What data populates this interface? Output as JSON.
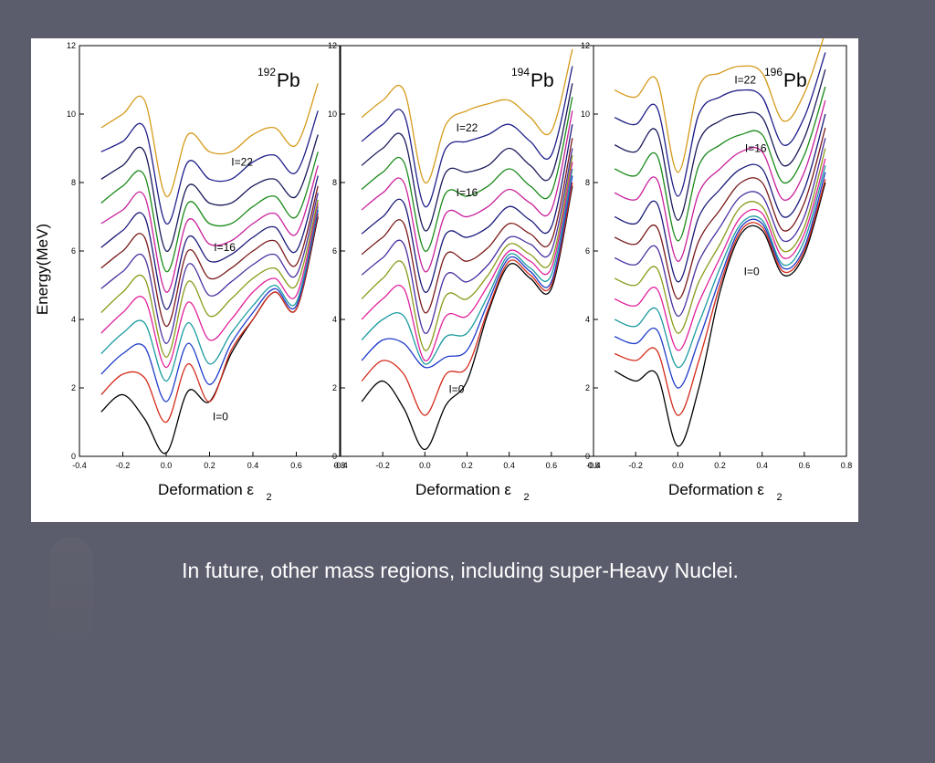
{
  "caption": "In future, other mass regions, including super-Heavy Nuclei.",
  "chart_data": [
    {
      "type": "line",
      "nucleus_mass": "192",
      "nucleus_symbol": "Pb",
      "xlabel": "Deformation ε",
      "xlabel_sub": "2",
      "ylabel": "Energy(MeV)",
      "xlim": [
        -0.4,
        0.8
      ],
      "ylim": [
        0,
        12
      ],
      "xticks": [
        "-0.4",
        "-0.2",
        "0.0",
        "0.2",
        "0.4",
        "0.6",
        "0.8"
      ],
      "yticks": [
        "0",
        "2",
        "4",
        "6",
        "8",
        "10",
        "12"
      ],
      "x": [
        -0.3,
        -0.2,
        -0.1,
        0.0,
        0.1,
        0.2,
        0.3,
        0.4,
        0.5,
        0.6,
        0.7
      ],
      "series": [
        {
          "values": [
            1.3,
            1.8,
            1.1,
            0.1,
            1.9,
            1.6,
            3.0,
            4.0,
            4.8,
            4.3,
            7.0
          ]
        },
        {
          "values": [
            1.8,
            2.4,
            2.3,
            1.0,
            2.7,
            1.6,
            3.1,
            4.0,
            4.8,
            4.3,
            7.1
          ]
        },
        {
          "values": [
            2.4,
            3.0,
            3.2,
            1.6,
            3.3,
            2.1,
            3.3,
            4.2,
            4.9,
            4.4,
            7.2
          ]
        },
        {
          "values": [
            3.0,
            3.6,
            3.9,
            2.2,
            3.9,
            2.7,
            3.6,
            4.4,
            5.0,
            4.5,
            7.3
          ]
        },
        {
          "values": [
            3.6,
            4.2,
            4.6,
            2.6,
            4.5,
            3.4,
            4.0,
            4.8,
            5.2,
            4.7,
            7.4
          ]
        },
        {
          "values": [
            4.2,
            4.8,
            5.2,
            2.9,
            5.1,
            4.1,
            4.6,
            5.2,
            5.5,
            5.0,
            7.5
          ]
        },
        {
          "values": [
            4.9,
            5.4,
            5.8,
            3.3,
            5.6,
            4.7,
            5.1,
            5.6,
            5.9,
            5.3,
            7.7
          ]
        },
        {
          "values": [
            5.5,
            6.0,
            6.4,
            3.8,
            6.0,
            5.2,
            5.5,
            6.0,
            6.3,
            5.6,
            7.9
          ]
        },
        {
          "values": [
            6.1,
            6.6,
            7.0,
            4.3,
            6.4,
            5.7,
            5.9,
            6.4,
            6.7,
            6.0,
            8.2
          ]
        },
        {
          "values": [
            6.8,
            7.2,
            7.6,
            4.8,
            6.9,
            6.2,
            6.3,
            6.8,
            7.1,
            6.5,
            8.5
          ]
        },
        {
          "values": [
            7.4,
            7.9,
            8.2,
            5.4,
            7.4,
            6.8,
            6.8,
            7.3,
            7.6,
            7.0,
            8.9
          ]
        },
        {
          "values": [
            8.1,
            8.5,
            8.9,
            6.0,
            7.9,
            7.4,
            7.4,
            7.9,
            8.1,
            7.6,
            9.4
          ]
        },
        {
          "values": [
            8.9,
            9.2,
            9.6,
            6.8,
            8.6,
            8.1,
            8.1,
            8.6,
            8.8,
            8.3,
            10.1
          ]
        },
        {
          "values": [
            9.6,
            10.0,
            10.4,
            7.6,
            9.4,
            8.9,
            8.9,
            9.4,
            9.6,
            9.1,
            10.9
          ]
        }
      ],
      "labels": [
        {
          "text": "I=0",
          "x": 0.25,
          "y": 1.05
        },
        {
          "text": "I=16",
          "x": 0.27,
          "y": 6.0
        },
        {
          "text": "I=22",
          "x": 0.35,
          "y": 8.5
        }
      ]
    },
    {
      "type": "line",
      "nucleus_mass": "194",
      "nucleus_symbol": "Pb",
      "xlabel": "Deformation ε",
      "xlabel_sub": "2",
      "xlim": [
        -0.4,
        0.8
      ],
      "ylim": [
        0,
        12
      ],
      "xticks": [
        "-0.4",
        "-0.2",
        "0.0",
        "0.2",
        "0.4",
        "0.6",
        "0.8"
      ],
      "yticks": [
        "0",
        "2",
        "4",
        "6",
        "8",
        "10",
        "12"
      ],
      "x": [
        -0.3,
        -0.2,
        -0.1,
        0.0,
        0.1,
        0.2,
        0.3,
        0.4,
        0.5,
        0.6,
        0.7
      ],
      "series": [
        {
          "values": [
            1.6,
            2.2,
            1.4,
            0.2,
            1.5,
            2.2,
            4.2,
            5.6,
            5.2,
            4.9,
            7.9
          ]
        },
        {
          "values": [
            2.2,
            2.8,
            2.4,
            1.2,
            2.4,
            2.6,
            4.3,
            5.7,
            5.3,
            5.0,
            8.0
          ]
        },
        {
          "values": [
            2.8,
            3.4,
            3.3,
            2.6,
            2.9,
            3.1,
            4.5,
            5.8,
            5.4,
            5.1,
            8.2
          ]
        },
        {
          "values": [
            3.4,
            4.0,
            4.1,
            2.7,
            3.5,
            3.6,
            4.7,
            5.9,
            5.5,
            5.3,
            8.4
          ]
        },
        {
          "values": [
            4.0,
            4.6,
            4.9,
            2.8,
            4.1,
            4.1,
            5.0,
            6.0,
            5.7,
            5.5,
            8.6
          ]
        },
        {
          "values": [
            4.6,
            5.2,
            5.6,
            3.1,
            4.7,
            4.6,
            5.3,
            6.2,
            5.9,
            5.7,
            8.8
          ]
        },
        {
          "values": [
            5.3,
            5.8,
            6.2,
            3.6,
            5.3,
            5.1,
            5.6,
            6.4,
            6.2,
            6.0,
            9.0
          ]
        },
        {
          "values": [
            5.9,
            6.4,
            6.8,
            4.2,
            5.9,
            5.7,
            6.1,
            6.8,
            6.5,
            6.3,
            9.3
          ]
        },
        {
          "values": [
            6.5,
            7.0,
            7.4,
            4.8,
            6.5,
            6.4,
            6.7,
            7.3,
            6.9,
            6.7,
            9.7
          ]
        },
        {
          "values": [
            7.2,
            7.7,
            8.0,
            5.4,
            7.1,
            7.0,
            7.3,
            7.8,
            7.4,
            7.2,
            10.1
          ]
        },
        {
          "values": [
            7.8,
            8.3,
            8.6,
            6.0,
            7.7,
            7.6,
            7.9,
            8.4,
            7.9,
            7.7,
            10.5
          ]
        },
        {
          "values": [
            8.5,
            9.0,
            9.3,
            6.6,
            8.3,
            8.3,
            8.5,
            9.0,
            8.5,
            8.2,
            10.9
          ]
        },
        {
          "values": [
            9.2,
            9.7,
            10.0,
            7.3,
            9.0,
            9.2,
            9.4,
            9.7,
            9.2,
            8.8,
            11.4
          ]
        },
        {
          "values": [
            9.9,
            10.4,
            10.7,
            8.0,
            9.7,
            10.1,
            10.3,
            10.4,
            9.9,
            9.5,
            11.9
          ]
        }
      ],
      "labels": [
        {
          "text": "I=0",
          "x": 0.15,
          "y": 1.85
        },
        {
          "text": "I=16",
          "x": 0.2,
          "y": 7.6
        },
        {
          "text": "I=22",
          "x": 0.2,
          "y": 9.5
        }
      ]
    },
    {
      "type": "line",
      "nucleus_mass": "196",
      "nucleus_symbol": "Pb",
      "xlabel": "Deformation ε",
      "xlabel_sub": "2",
      "xlim": [
        -0.4,
        0.8
      ],
      "ylim": [
        0,
        12
      ],
      "xticks": [
        "-0.4",
        "-0.2",
        "0.0",
        "0.2",
        "0.4",
        "0.6",
        "0.8"
      ],
      "yticks": [
        "0",
        "2",
        "4",
        "6",
        "8",
        "10",
        "12"
      ],
      "x": [
        -0.3,
        -0.2,
        -0.1,
        0.0,
        0.1,
        0.2,
        0.3,
        0.4,
        0.5,
        0.6,
        0.7
      ],
      "series": [
        {
          "values": [
            2.5,
            2.2,
            2.4,
            0.3,
            2.0,
            4.8,
            6.5,
            6.6,
            5.3,
            5.9,
            8.0
          ]
        },
        {
          "values": [
            3.0,
            2.8,
            3.1,
            1.2,
            2.8,
            5.0,
            6.6,
            6.7,
            5.4,
            6.0,
            8.1
          ]
        },
        {
          "values": [
            3.5,
            3.3,
            3.7,
            2.0,
            3.4,
            5.2,
            6.7,
            6.8,
            5.5,
            6.1,
            8.3
          ]
        },
        {
          "values": [
            4.0,
            3.8,
            4.3,
            2.6,
            3.9,
            5.5,
            6.8,
            6.9,
            5.6,
            6.3,
            8.5
          ]
        },
        {
          "values": [
            4.6,
            4.4,
            4.9,
            3.1,
            4.5,
            5.8,
            7.0,
            7.1,
            5.8,
            6.5,
            8.7
          ]
        },
        {
          "values": [
            5.2,
            5.0,
            5.5,
            3.6,
            5.1,
            6.2,
            7.3,
            7.3,
            6.0,
            6.7,
            9.0
          ]
        },
        {
          "values": [
            5.8,
            5.6,
            6.1,
            4.1,
            5.7,
            6.7,
            7.6,
            7.6,
            6.3,
            7.0,
            9.3
          ]
        },
        {
          "values": [
            6.4,
            6.2,
            6.7,
            4.6,
            6.3,
            7.2,
            8.0,
            8.0,
            6.6,
            7.4,
            9.6
          ]
        },
        {
          "values": [
            7.0,
            6.8,
            7.4,
            5.1,
            7.0,
            7.8,
            8.4,
            8.4,
            7.0,
            7.8,
            10.0
          ]
        },
        {
          "values": [
            7.7,
            7.5,
            8.1,
            5.7,
            7.7,
            8.4,
            8.9,
            8.9,
            7.5,
            8.3,
            10.4
          ]
        },
        {
          "values": [
            8.4,
            8.2,
            8.8,
            6.3,
            8.5,
            9.1,
            9.4,
            9.4,
            8.0,
            8.8,
            10.8
          ]
        },
        {
          "values": [
            9.1,
            8.9,
            9.5,
            6.9,
            9.2,
            9.8,
            10.0,
            9.9,
            8.5,
            9.3,
            11.3
          ]
        },
        {
          "values": [
            9.9,
            9.7,
            10.2,
            7.6,
            10.0,
            10.5,
            10.7,
            10.5,
            9.1,
            9.9,
            11.8
          ]
        },
        {
          "values": [
            10.7,
            10.5,
            11.0,
            8.3,
            10.8,
            11.2,
            11.4,
            11.2,
            9.8,
            10.6,
            12.4
          ]
        }
      ],
      "labels": [
        {
          "text": "I=0",
          "x": 0.35,
          "y": 5.3
        },
        {
          "text": "I=16",
          "x": 0.37,
          "y": 8.9
        },
        {
          "text": "I=22",
          "x": 0.32,
          "y": 10.9
        }
      ]
    }
  ],
  "series_colors": [
    "#000000",
    "#d42a1a",
    "#1f3cc8",
    "#1a9aa0",
    "#e0209a",
    "#8a9a1a",
    "#4a30a0",
    "#7a1a1a",
    "#1a1a7a",
    "#c8209a",
    "#1a8a1a",
    "#1a1a5a",
    "#1f1f8a",
    "#d49a1a"
  ]
}
